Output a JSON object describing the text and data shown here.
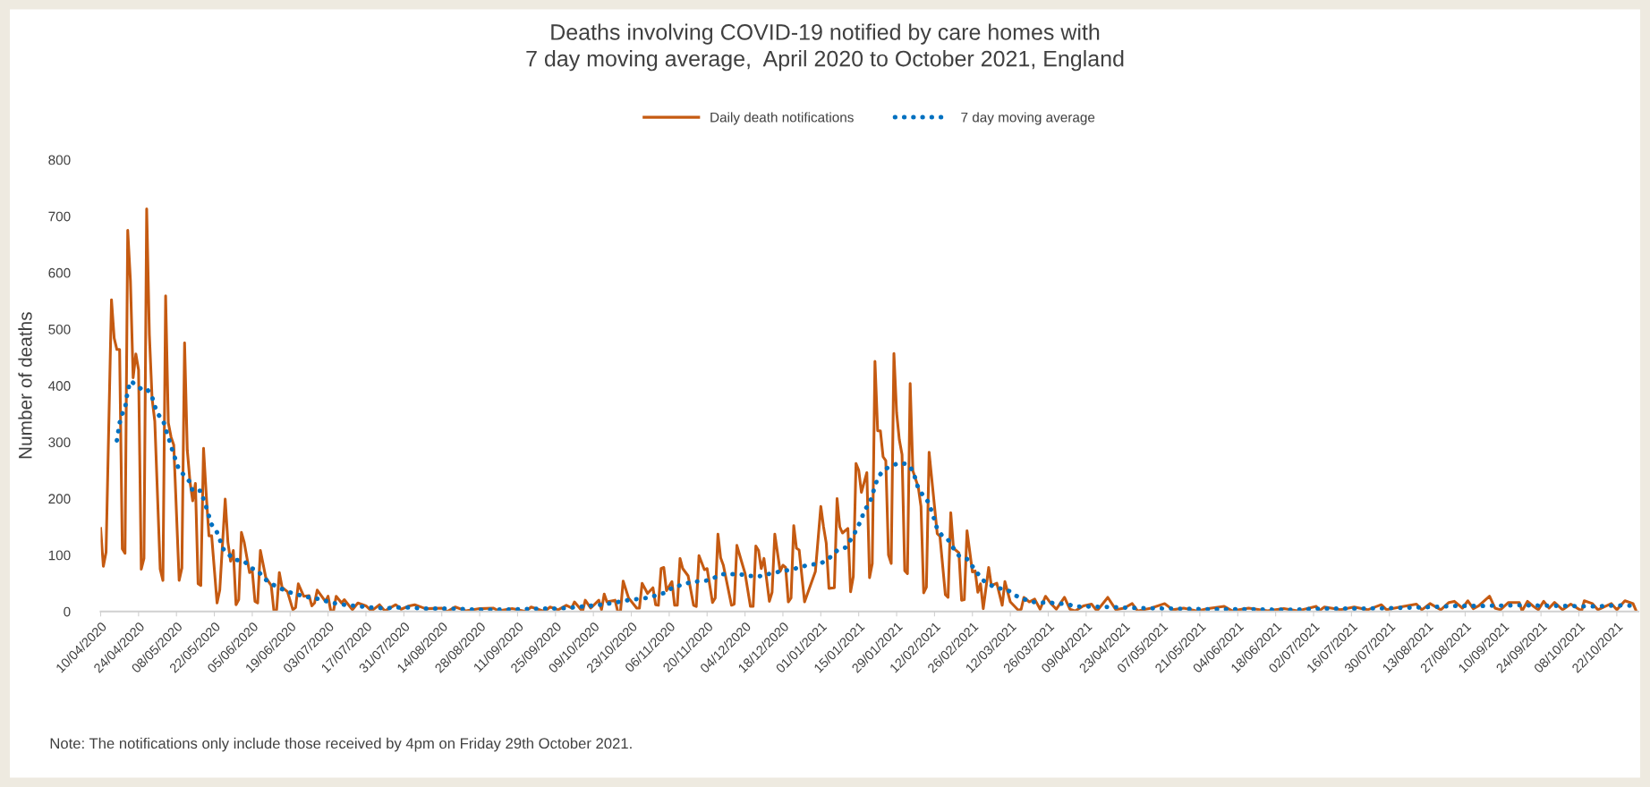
{
  "chart_data": {
    "type": "line",
    "title": "Deaths involving COVID-19 notified by care homes with\n7 day moving average,  April 2020 to October 2021, England",
    "ylabel": "Number of deaths",
    "annotations": [
      "Note: The notifications only include those received by 4pm on Friday 29th October 2021."
    ],
    "legend": "top",
    "grid": false,
    "marker": "none",
    "xlim": [
      "2020-04-10",
      "2021-10-30"
    ],
    "xticks": [
      {
        "value": "2020-04-10",
        "label": "10/04/2020"
      },
      {
        "value": "2020-04-24",
        "label": "24/04/2020"
      },
      {
        "value": "2020-05-08",
        "label": "08/05/2020"
      },
      {
        "value": "2020-05-22",
        "label": "22/05/2020"
      },
      {
        "value": "2020-06-05",
        "label": "05/06/2020"
      },
      {
        "value": "2020-06-19",
        "label": "19/06/2020"
      },
      {
        "value": "2020-07-03",
        "label": "03/07/2020"
      },
      {
        "value": "2020-07-17",
        "label": "17/07/2020"
      },
      {
        "value": "2020-07-31",
        "label": "31/07/2020"
      },
      {
        "value": "2020-08-14",
        "label": "14/08/2020"
      },
      {
        "value": "2020-08-28",
        "label": "28/08/2020"
      },
      {
        "value": "2020-09-11",
        "label": "11/09/2020"
      },
      {
        "value": "2020-09-25",
        "label": "25/09/2020"
      },
      {
        "value": "2020-10-09",
        "label": "09/10/2020"
      },
      {
        "value": "2020-10-23",
        "label": "23/10/2020"
      },
      {
        "value": "2020-11-06",
        "label": "06/11/2020"
      },
      {
        "value": "2020-11-20",
        "label": "20/11/2020"
      },
      {
        "value": "2020-12-04",
        "label": "04/12/2020"
      },
      {
        "value": "2020-12-18",
        "label": "18/12/2020"
      },
      {
        "value": "2021-01-01",
        "label": "01/01/2021"
      },
      {
        "value": "2021-01-15",
        "label": "15/01/2021"
      },
      {
        "value": "2021-01-29",
        "label": "29/01/2021"
      },
      {
        "value": "2021-02-12",
        "label": "12/02/2021"
      },
      {
        "value": "2021-02-26",
        "label": "26/02/2021"
      },
      {
        "value": "2021-03-12",
        "label": "12/03/2021"
      },
      {
        "value": "2021-03-26",
        "label": "26/03/2021"
      },
      {
        "value": "2021-04-09",
        "label": "09/04/2021"
      },
      {
        "value": "2021-04-23",
        "label": "23/04/2021"
      },
      {
        "value": "2021-05-07",
        "label": "07/05/2021"
      },
      {
        "value": "2021-05-21",
        "label": "21/05/2021"
      },
      {
        "value": "2021-06-04",
        "label": "04/06/2021"
      },
      {
        "value": "2021-06-18",
        "label": "18/06/2021"
      },
      {
        "value": "2021-07-02",
        "label": "02/07/2021"
      },
      {
        "value": "2021-07-16",
        "label": "16/07/2021"
      },
      {
        "value": "2021-07-30",
        "label": "30/07/2021"
      },
      {
        "value": "2021-08-13",
        "label": "13/08/2021"
      },
      {
        "value": "2021-08-27",
        "label": "27/08/2021"
      },
      {
        "value": "2021-09-10",
        "label": "10/09/2021"
      },
      {
        "value": "2021-09-24",
        "label": "24/09/2021"
      },
      {
        "value": "2021-10-08",
        "label": "08/10/2021"
      },
      {
        "value": "2021-10-22",
        "label": "22/10/2021"
      }
    ],
    "ylim": [
      0,
      800
    ],
    "yticks": [
      0,
      100,
      200,
      300,
      400,
      500,
      600,
      700,
      800
    ],
    "series": [
      {
        "name": "Daily death notifications",
        "line_style": "solid",
        "color": "#c55a11",
        "x": [
          "2020-04-10",
          "2020-04-11",
          "2020-04-12",
          "2020-04-14",
          "2020-04-15",
          "2020-04-16",
          "2020-04-17",
          "2020-04-18",
          "2020-04-19",
          "2020-04-20",
          "2020-04-21",
          "2020-04-22",
          "2020-04-23",
          "2020-04-24",
          "2020-04-25",
          "2020-04-26",
          "2020-04-27",
          "2020-04-28",
          "2020-04-29",
          "2020-04-30",
          "2020-05-02",
          "2020-05-03",
          "2020-05-04",
          "2020-05-05",
          "2020-05-06",
          "2020-05-07",
          "2020-05-09",
          "2020-05-10",
          "2020-05-11",
          "2020-05-12",
          "2020-05-13",
          "2020-05-14",
          "2020-05-15",
          "2020-05-16",
          "2020-05-17",
          "2020-05-18",
          "2020-05-19",
          "2020-05-20",
          "2020-05-21",
          "2020-05-23",
          "2020-05-24",
          "2020-05-26",
          "2020-05-27",
          "2020-05-28",
          "2020-05-29",
          "2020-05-30",
          "2020-05-31",
          "2020-06-01",
          "2020-06-02",
          "2020-06-04",
          "2020-06-05",
          "2020-06-06",
          "2020-06-07",
          "2020-06-08",
          "2020-06-10",
          "2020-06-12",
          "2020-06-13",
          "2020-06-14",
          "2020-06-15",
          "2020-06-16",
          "2020-06-18",
          "2020-06-20",
          "2020-06-21",
          "2020-06-22",
          "2020-06-24",
          "2020-06-26",
          "2020-06-27",
          "2020-06-28",
          "2020-06-29",
          "2020-07-02",
          "2020-07-03",
          "2020-07-04",
          "2020-07-05",
          "2020-07-06",
          "2020-07-08",
          "2020-07-09",
          "2020-07-12",
          "2020-07-14",
          "2020-07-17",
          "2020-07-19",
          "2020-07-22",
          "2020-07-24",
          "2020-07-28",
          "2020-07-30",
          "2020-08-02",
          "2020-08-04",
          "2020-08-08",
          "2020-08-14",
          "2020-08-16",
          "2020-08-19",
          "2020-08-23",
          "2020-08-28",
          "2020-09-02",
          "2020-09-04",
          "2020-09-09",
          "2020-09-14",
          "2020-09-16",
          "2020-09-21",
          "2020-09-23",
          "2020-09-26",
          "2020-09-29",
          "2020-10-01",
          "2020-10-02",
          "2020-10-05",
          "2020-10-06",
          "2020-10-08",
          "2020-10-11",
          "2020-10-12",
          "2020-10-13",
          "2020-10-14",
          "2020-10-17",
          "2020-10-18",
          "2020-10-19",
          "2020-10-20",
          "2020-10-22",
          "2020-10-25",
          "2020-10-26",
          "2020-10-27",
          "2020-10-29",
          "2020-10-31",
          "2020-11-01",
          "2020-11-02",
          "2020-11-03",
          "2020-11-04",
          "2020-11-05",
          "2020-11-07",
          "2020-11-08",
          "2020-11-09",
          "2020-11-10",
          "2020-11-11",
          "2020-11-13",
          "2020-11-15",
          "2020-11-16",
          "2020-11-17",
          "2020-11-19",
          "2020-11-20",
          "2020-11-22",
          "2020-11-23",
          "2020-11-24",
          "2020-11-25",
          "2020-11-26",
          "2020-11-29",
          "2020-11-30",
          "2020-12-01",
          "2020-12-03",
          "2020-12-04",
          "2020-12-06",
          "2020-12-07",
          "2020-12-08",
          "2020-12-09",
          "2020-12-10",
          "2020-12-11",
          "2020-12-13",
          "2020-12-14",
          "2020-12-15",
          "2020-12-17",
          "2020-12-18",
          "2020-12-19",
          "2020-12-20",
          "2020-12-21",
          "2020-12-22",
          "2020-12-23",
          "2020-12-24",
          "2020-12-26",
          "2020-12-30",
          "2021-01-01",
          "2021-01-02",
          "2021-01-03",
          "2021-01-04",
          "2021-01-06",
          "2021-01-07",
          "2021-01-08",
          "2021-01-09",
          "2021-01-11",
          "2021-01-12",
          "2021-01-13",
          "2021-01-14",
          "2021-01-15",
          "2021-01-16",
          "2021-01-18",
          "2021-01-19",
          "2021-01-20",
          "2021-01-21",
          "2021-01-22",
          "2021-01-23",
          "2021-01-24",
          "2021-01-25",
          "2021-01-26",
          "2021-01-27",
          "2021-01-28",
          "2021-01-29",
          "2021-01-30",
          "2021-01-31",
          "2021-02-01",
          "2021-02-02",
          "2021-02-03",
          "2021-02-04",
          "2021-02-06",
          "2021-02-07",
          "2021-02-08",
          "2021-02-09",
          "2021-02-10",
          "2021-02-12",
          "2021-02-13",
          "2021-02-14",
          "2021-02-16",
          "2021-02-17",
          "2021-02-18",
          "2021-02-19",
          "2021-02-21",
          "2021-02-22",
          "2021-02-23",
          "2021-02-24",
          "2021-02-26",
          "2021-02-27",
          "2021-02-28",
          "2021-03-01",
          "2021-03-02",
          "2021-03-04",
          "2021-03-05",
          "2021-03-07",
          "2021-03-09",
          "2021-03-10",
          "2021-03-12",
          "2021-03-15",
          "2021-03-16",
          "2021-03-17",
          "2021-03-19",
          "2021-03-21",
          "2021-03-23",
          "2021-03-25",
          "2021-03-27",
          "2021-03-29",
          "2021-04-01",
          "2021-04-03",
          "2021-04-05",
          "2021-04-08",
          "2021-04-11",
          "2021-04-13",
          "2021-04-17",
          "2021-04-20",
          "2021-04-23",
          "2021-04-26",
          "2021-04-28",
          "2021-05-03",
          "2021-05-08",
          "2021-05-11",
          "2021-05-15",
          "2021-05-20",
          "2021-05-24",
          "2021-05-30",
          "2021-06-02",
          "2021-06-08",
          "2021-06-15",
          "2021-06-21",
          "2021-06-26",
          "2021-07-03",
          "2021-07-04",
          "2021-07-06",
          "2021-07-12",
          "2021-07-17",
          "2021-07-22",
          "2021-07-27",
          "2021-07-29",
          "2021-08-03",
          "2021-08-09",
          "2021-08-11",
          "2021-08-14",
          "2021-08-18",
          "2021-08-21",
          "2021-08-23",
          "2021-08-26",
          "2021-08-28",
          "2021-08-30",
          "2021-09-01",
          "2021-09-05",
          "2021-09-07",
          "2021-09-09",
          "2021-09-12",
          "2021-09-16",
          "2021-09-17",
          "2021-09-19",
          "2021-09-21",
          "2021-09-23",
          "2021-09-25",
          "2021-09-27",
          "2021-09-29",
          "2021-10-02",
          "2021-10-05",
          "2021-10-09",
          "2021-10-10",
          "2021-10-13",
          "2021-10-15",
          "2021-10-20",
          "2021-10-22",
          "2021-10-25",
          "2021-10-28",
          "2021-10-29"
        ],
        "values": [
          147,
          80,
          105,
          552,
          484,
          464,
          464,
          111,
          103,
          675,
          586,
          414,
          456,
          428,
          75,
          94,
          713,
          490,
          377,
          337,
          75,
          55,
          559,
          334,
          309,
          295,
          55,
          77,
          476,
          286,
          230,
          196,
          227,
          49,
          46,
          289,
          207,
          134,
          134,
          15,
          38,
          199,
          123,
          89,
          108,
          12,
          21,
          140,
          123,
          69,
          72,
          18,
          15,
          108,
          60,
          46,
          1,
          3,
          69,
          43,
          35,
          3,
          7,
          49,
          27,
          28,
          10,
          15,
          38,
          18,
          27,
          1,
          1,
          27,
          15,
          21,
          3,
          15,
          10,
          1,
          12,
          1,
          12,
          4,
          10,
          12,
          5,
          6,
          0,
          8,
          1,
          5,
          6,
          1,
          5,
          0,
          8,
          0,
          8,
          3,
          11,
          6,
          17,
          0,
          20,
          6,
          20,
          3,
          31,
          17,
          20,
          0,
          0,
          54,
          24,
          6,
          6,
          50,
          32,
          42,
          12,
          11,
          76,
          78,
          37,
          53,
          11,
          11,
          94,
          76,
          63,
          11,
          9,
          99,
          74,
          76,
          16,
          24,
          137,
          95,
          82,
          11,
          13,
          117,
          84,
          68,
          9,
          9,
          116,
          108,
          76,
          94,
          18,
          34,
          137,
          71,
          82,
          78,
          17,
          24,
          152,
          112,
          109,
          17,
          71,
          186,
          150,
          121,
          41,
          42,
          200,
          150,
          139,
          147,
          35,
          62,
          262,
          250,
          211,
          246,
          60,
          85,
          443,
          320,
          320,
          274,
          267,
          100,
          85,
          457,
          352,
          304,
          278,
          72,
          67,
          404,
          249,
          220,
          186,
          33,
          43,
          282,
          186,
          138,
          133,
          30,
          25,
          175,
          112,
          104,
          20,
          21,
          143,
          70,
          72,
          34,
          49,
          5,
          78,
          46,
          50,
          11,
          53,
          17,
          2,
          4,
          25,
          17,
          22,
          4,
          27,
          14,
          4,
          25,
          4,
          1,
          10,
          13,
          1,
          25,
          3,
          6,
          14,
          1,
          6,
          14,
          3,
          6,
          1,
          5,
          9,
          1,
          6,
          1,
          5,
          1,
          9,
          1,
          8,
          3,
          8,
          3,
          12,
          3,
          8,
          13,
          3,
          14,
          3,
          16,
          18,
          6,
          19,
          5,
          10,
          27,
          6,
          3,
          16,
          16,
          1,
          18,
          10,
          3,
          18,
          6,
          16,
          3,
          13,
          1,
          19,
          14,
          3,
          14,
          3,
          19,
          14,
          3
        ]
      },
      {
        "name": "7 day moving average",
        "line_style": "dotted",
        "color": "#0070c0",
        "x": [
          "2020-04-16",
          "2020-04-17",
          "2020-04-18",
          "2020-04-19",
          "2020-04-20",
          "2020-04-21",
          "2020-04-23",
          "2020-04-25",
          "2020-04-27",
          "2020-04-29",
          "2020-04-30",
          "2020-05-01",
          "2020-05-03",
          "2020-05-04",
          "2020-05-05",
          "2020-05-06",
          "2020-05-07",
          "2020-05-08",
          "2020-05-09",
          "2020-05-11",
          "2020-05-13",
          "2020-05-14",
          "2020-05-15",
          "2020-05-17",
          "2020-05-18",
          "2020-05-19",
          "2020-05-20",
          "2020-05-21",
          "2020-05-23",
          "2020-05-24",
          "2020-05-25",
          "2020-05-27",
          "2020-05-29",
          "2020-06-01",
          "2020-06-02",
          "2020-06-05",
          "2020-06-07",
          "2020-06-09",
          "2020-06-12",
          "2020-06-15",
          "2020-06-18",
          "2020-06-21",
          "2020-06-24",
          "2020-06-27",
          "2020-07-01",
          "2020-07-04",
          "2020-07-07",
          "2020-07-10",
          "2020-07-14",
          "2020-07-18",
          "2020-07-21",
          "2020-07-24",
          "2020-07-27",
          "2020-07-31",
          "2020-08-03",
          "2020-08-07",
          "2020-08-17",
          "2020-08-30",
          "2020-09-12",
          "2020-09-19",
          "2020-09-26",
          "2020-10-03",
          "2020-10-10",
          "2020-10-16",
          "2020-10-23",
          "2020-10-29",
          "2020-11-05",
          "2020-11-07",
          "2020-11-14",
          "2020-11-20",
          "2020-11-26",
          "2020-12-02",
          "2020-12-06",
          "2020-12-09",
          "2020-12-15",
          "2020-12-21",
          "2020-12-27",
          "2021-01-01",
          "2021-01-04",
          "2021-01-07",
          "2021-01-10",
          "2021-01-13",
          "2021-01-16",
          "2021-01-17",
          "2021-01-19",
          "2021-01-20",
          "2021-01-21",
          "2021-01-22",
          "2021-01-24",
          "2021-01-27",
          "2021-01-30",
          "2021-02-02",
          "2021-02-04",
          "2021-02-05",
          "2021-02-06",
          "2021-02-08",
          "2021-02-10",
          "2021-02-11",
          "2021-02-12",
          "2021-02-13",
          "2021-02-15",
          "2021-02-17",
          "2021-02-19",
          "2021-02-21",
          "2021-02-24",
          "2021-02-26",
          "2021-02-28",
          "2021-03-02",
          "2021-03-05",
          "2021-03-07",
          "2021-03-11",
          "2021-03-14",
          "2021-03-17",
          "2021-03-20",
          "2021-03-23",
          "2021-03-26",
          "2021-03-30",
          "2021-04-02",
          "2021-04-05",
          "2021-04-18",
          "2021-04-28",
          "2021-05-12",
          "2021-05-25",
          "2021-06-08",
          "2021-06-22",
          "2021-07-05",
          "2021-07-19",
          "2021-08-01",
          "2021-08-15",
          "2021-08-24",
          "2021-09-03",
          "2021-09-16",
          "2021-09-30",
          "2021-10-13",
          "2021-10-24",
          "2021-10-29"
        ],
        "values": [
          303,
          334,
          350,
          359,
          391,
          408,
          402,
          394,
          395,
          380,
          364,
          350,
          340,
          323,
          309,
          293,
          278,
          264,
          250,
          241,
          229,
          213,
          213,
          214,
          199,
          185,
          169,
          154,
          140,
          128,
          112,
          103,
          92,
          90,
          89,
          76,
          73,
          60,
          49,
          42,
          35,
          31,
          27,
          24,
          21,
          15,
          14,
          11,
          10,
          7,
          7,
          5,
          7,
          7,
          7,
          5,
          5,
          3,
          4,
          5,
          5,
          8,
          11,
          15,
          21,
          24,
          34,
          42,
          52,
          55,
          66,
          66,
          63,
          62,
          69,
          74,
          82,
          85,
          94,
          108,
          113,
          134,
          163,
          179,
          191,
          206,
          222,
          236,
          250,
          258,
          263,
          261,
          249,
          234,
          218,
          204,
          192,
          176,
          162,
          146,
          133,
          127,
          112,
          99,
          93,
          80,
          67,
          55,
          46,
          42,
          38,
          28,
          22,
          17,
          16,
          16,
          14,
          13,
          9,
          8,
          6,
          5,
          4,
          4,
          3,
          5,
          5,
          6,
          8,
          10,
          10,
          11,
          10,
          9,
          11,
          10
        ]
      }
    ]
  }
}
